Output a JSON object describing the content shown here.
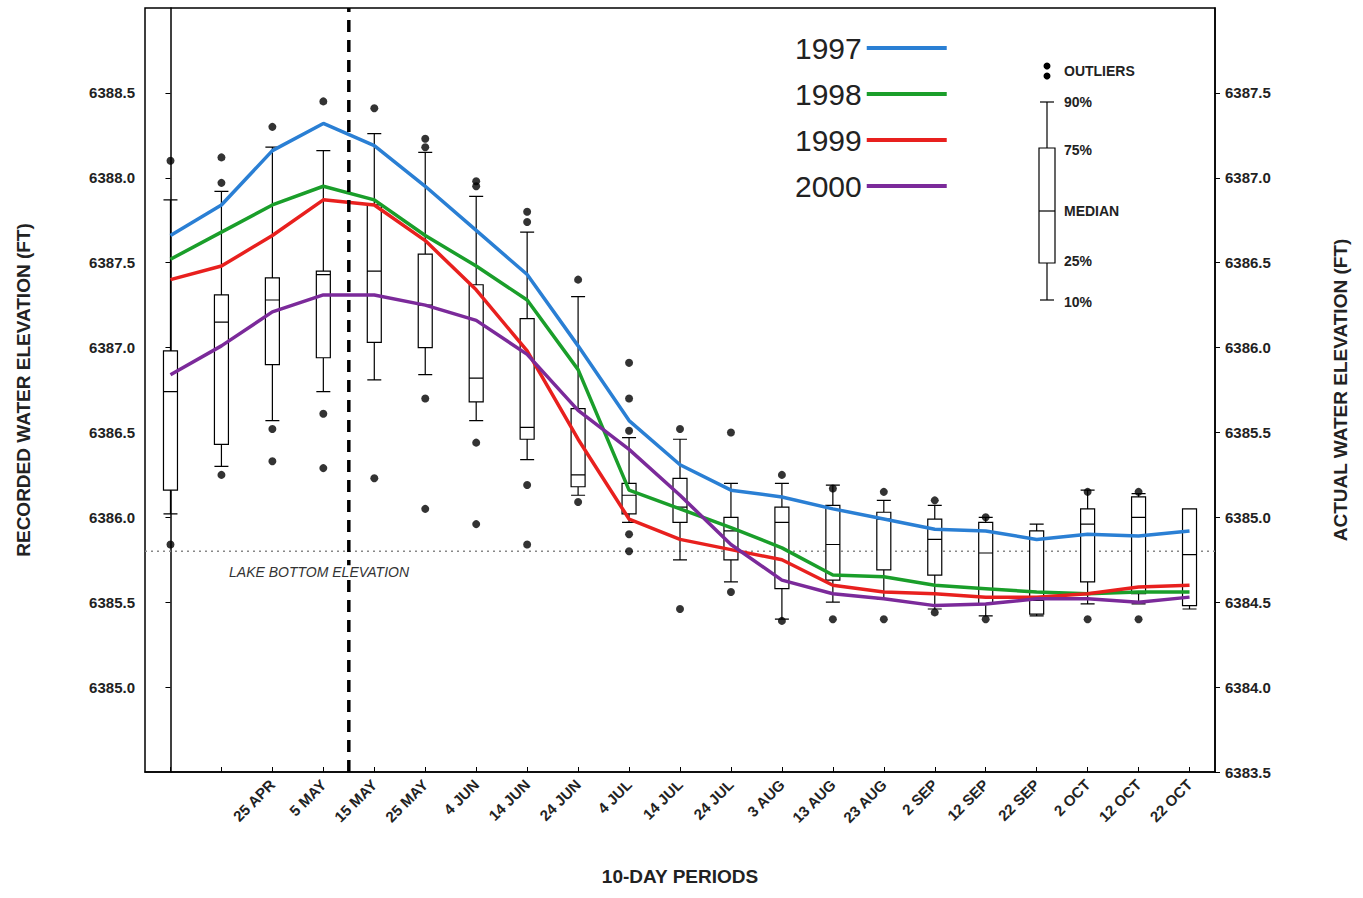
{
  "chart_data": {
    "type": "line",
    "x_label": "10-DAY PERIODS",
    "y_label": "RECORDED WATER ELEVATION (FT)",
    "y2_label": "ACTUAL WATER ELEVATION (FT)",
    "categories": [
      null,
      null,
      "25 APR",
      "5 MAY",
      "15 MAY",
      "25 MAY",
      "4 JUN",
      "14 JUN",
      "24 JUN",
      "4 JUL",
      "14 JUL",
      "24 JUL",
      "3 AUG",
      "13 AUG",
      "23 AUG",
      "2 SEP",
      "12 SEP",
      "22 SEP",
      "2 OCT",
      "12 OCT",
      "22 OCT"
    ],
    "ylim": [
      6384.5,
      6389.0
    ],
    "yticks": [
      {
        "value": 6385,
        "label": "6385.0"
      },
      6385.5,
      {
        "value": 6386,
        "label": "6386.0"
      },
      6386.5,
      {
        "value": 6387,
        "label": "6387.0"
      },
      6387.5,
      {
        "value": 6388,
        "label": "6388.0"
      },
      6388.5
    ],
    "y2lim": [
      6383.5,
      6388.0
    ],
    "y2ticks": [
      6383.5,
      {
        "value": 6384,
        "label": "6384.0"
      },
      6384.5,
      {
        "value": 6385,
        "label": "6385.0"
      },
      6385.5,
      {
        "value": 6386,
        "label": "6386.0"
      },
      6386.5,
      {
        "value": 6387,
        "label": "6387.0"
      },
      6387.5
    ],
    "grid": false,
    "legend": "top-right",
    "series": [
      {
        "name": "1997",
        "color": "#2a7fd4",
        "line_style": "solid",
        "values": [
          6387.66,
          6387.84,
          6388.16,
          6388.32,
          6388.19,
          6387.95,
          6387.69,
          6387.43,
          6387.01,
          6386.57,
          6386.31,
          6386.16,
          6386.12,
          6386.05,
          6385.99,
          6385.93,
          6385.92,
          6385.87,
          6385.9,
          6385.89,
          6385.92
        ]
      },
      {
        "name": "1998",
        "color": "#1a9e2a",
        "line_style": "solid",
        "values": [
          6387.52,
          6387.68,
          6387.84,
          6387.95,
          6387.87,
          6387.66,
          6387.48,
          6387.28,
          6386.87,
          6386.16,
          6386.05,
          6385.94,
          6385.82,
          6385.66,
          6385.65,
          6385.6,
          6385.58,
          6385.56,
          6385.55,
          6385.56,
          6385.56
        ]
      },
      {
        "name": "1999",
        "color": "#e8201e",
        "line_style": "solid",
        "values": [
          6387.4,
          6387.48,
          6387.66,
          6387.87,
          6387.84,
          6387.63,
          6387.34,
          6386.98,
          6386.46,
          6385.99,
          6385.87,
          6385.81,
          6385.75,
          6385.6,
          6385.56,
          6385.55,
          6385.53,
          6385.53,
          6385.55,
          6385.59,
          6385.6
        ]
      },
      {
        "name": "2000",
        "color": "#7b2a9a",
        "line_style": "solid",
        "values": [
          6386.84,
          6387.01,
          6387.21,
          6387.31,
          6387.31,
          6387.25,
          6387.16,
          6386.96,
          6386.63,
          6386.4,
          6386.13,
          6385.84,
          6385.63,
          6385.55,
          6385.52,
          6385.48,
          6385.49,
          6385.52,
          6385.52,
          6385.5,
          6385.53
        ]
      }
    ],
    "boxes": {
      "type": "boxplot",
      "color": "#000000",
      "p10": [
        6386.02,
        6386.3,
        6386.57,
        6386.74,
        6386.81,
        6386.84,
        6386.57,
        6386.34,
        6386.13,
        6385.97,
        6385.75,
        6385.62,
        6385.4,
        6385.5,
        6385.52,
        6385.46,
        6385.42,
        6385.42,
        6385.49,
        6385.49,
        6385.46
      ],
      "p25": [
        6386.16,
        6386.43,
        6386.9,
        6386.94,
        6387.03,
        6387.0,
        6386.68,
        6386.46,
        6386.18,
        6386.02,
        6385.97,
        6385.75,
        6385.58,
        6385.63,
        6385.69,
        6385.66,
        6385.49,
        6385.43,
        6385.62,
        6385.55,
        6385.48
      ],
      "median": [
        6386.74,
        6387.15,
        6387.28,
        6387.43,
        6387.45,
        6387.25,
        6386.82,
        6386.53,
        6386.25,
        6386.13,
        6386.06,
        6385.92,
        6385.97,
        6385.84,
        6385.99,
        6385.87,
        6385.79,
        6385.51,
        6385.96,
        6386.0,
        6385.78
      ],
      "p75": [
        6386.98,
        6387.31,
        6387.41,
        6387.45,
        6387.84,
        6387.55,
        6387.37,
        6387.17,
        6386.64,
        6386.2,
        6386.23,
        6386.0,
        6386.06,
        6386.07,
        6386.03,
        6385.99,
        6385.97,
        6385.92,
        6386.05,
        6386.12,
        6386.05
      ],
      "p90": [
        6387.87,
        6387.92,
        6388.18,
        6388.16,
        6388.26,
        6388.15,
        6387.89,
        6387.68,
        6387.3,
        6386.47,
        6386.46,
        6386.2,
        6386.2,
        6386.19,
        6386.1,
        6386.07,
        6386.0,
        6385.96,
        6386.16,
        6386.14,
        6386.05
      ],
      "outliers": [
        [
          6388.1,
          6385.84
        ],
        [
          6388.12,
          6387.97,
          6386.25
        ],
        [
          6388.3,
          6386.52,
          6386.33
        ],
        [
          6388.45,
          6386.61,
          6386.29
        ],
        [
          6388.41,
          6386.23
        ],
        [
          6388.23,
          6388.18,
          6386.7,
          6386.05
        ],
        [
          6387.98,
          6387.95,
          6386.44,
          6385.96
        ],
        [
          6387.8,
          6387.74,
          6386.19,
          6385.84
        ],
        [
          6387.4,
          6386.09
        ],
        [
          6386.91,
          6386.7,
          6386.51,
          6385.9,
          6385.8
        ],
        [
          6386.52,
          6385.46
        ],
        [
          6386.5,
          6385.56
        ],
        [
          6386.25,
          6385.39
        ],
        [
          6386.17,
          6385.4
        ],
        [
          6386.15,
          6385.4
        ],
        [
          6386.1,
          6385.44
        ],
        [
          6386.0,
          6385.4
        ],
        [],
        [
          6386.15,
          6385.4
        ],
        [
          6386.15,
          6385.4
        ],
        []
      ]
    },
    "box_key": {
      "outliers": "OUTLIERS",
      "p90": "90%",
      "p75": "75%",
      "median": "MEDIAN",
      "p25": "25%",
      "p10": "10%"
    },
    "reference_lines": [
      {
        "axis": "x",
        "value": 3.5,
        "color": "#000000",
        "line_style": "dashed"
      },
      {
        "axis": "y",
        "value": 6385.8,
        "label": "LAKE BOTTOM ELEVATION",
        "color": "#888888",
        "line_style": "dotted"
      }
    ]
  }
}
